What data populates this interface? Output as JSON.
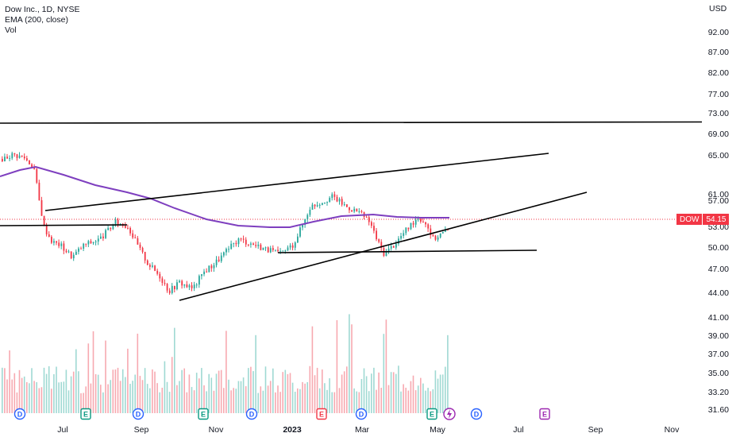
{
  "legend": {
    "symbol_line": "Dow Inc., 1D, NYSE",
    "ema_line": "EMA (200, close)",
    "vol_line": "Vol"
  },
  "currency": "USD",
  "price_axis": [
    "92.00",
    "87.00",
    "82.00",
    "77.00",
    "73.00",
    "69.00",
    "65.00",
    "61.00",
    "57.00",
    "53.00",
    "50.00",
    "47.00",
    "44.00",
    "41.00",
    "39.00",
    "37.00",
    "35.00",
    "33.20",
    "31.60"
  ],
  "time_axis": [
    "Jul",
    "Sep",
    "Nov",
    "2023",
    "Mar",
    "May",
    "Jul",
    "Sep",
    "Nov"
  ],
  "last_price": {
    "symbol": "DOW",
    "value": "54.15"
  },
  "event_markers": [
    "D",
    "E",
    "D",
    "E",
    "D",
    "E",
    "D",
    "E",
    "D",
    "E"
  ],
  "colors": {
    "up": "#26a69a",
    "down": "#f23645",
    "ema": "#7e3fbf",
    "vol_up": "#9fd9d3",
    "vol_down": "#f7a9b0",
    "trendline": "#000000",
    "dividend": "#2962ff",
    "earnings_past": "#089981",
    "earnings_down": "#f23645",
    "earnings_future": "#9c27b0"
  },
  "chart_data": {
    "type": "candlestick",
    "symbol": "Dow Inc.",
    "interval": "1D",
    "exchange": "NYSE",
    "indicators": [
      "EMA (200, close)",
      "Vol"
    ],
    "last_price": 54.15,
    "close_series_approx": [
      {
        "x": "2022-06",
        "y": 69.0
      },
      {
        "x": "2022-06",
        "y": 68.0
      },
      {
        "x": "2022-06",
        "y": 65.5
      },
      {
        "x": "2022-07",
        "y": 53.0
      },
      {
        "x": "2022-07",
        "y": 51.0
      },
      {
        "x": "2022-07",
        "y": 52.5
      },
      {
        "x": "2022-08",
        "y": 53.5
      },
      {
        "x": "2022-08",
        "y": 55.0
      },
      {
        "x": "2022-09",
        "y": 52.0
      },
      {
        "x": "2022-09",
        "y": 48.0
      },
      {
        "x": "2022-10",
        "y": 44.5
      },
      {
        "x": "2022-10",
        "y": 46.0
      },
      {
        "x": "2022-11",
        "y": 49.0
      },
      {
        "x": "2022-11",
        "y": 51.5
      },
      {
        "x": "2022-12",
        "y": 51.0
      },
      {
        "x": "2022-12",
        "y": 50.0
      },
      {
        "x": "2023-01",
        "y": 57.0
      },
      {
        "x": "2023-01",
        "y": 59.5
      },
      {
        "x": "2023-02",
        "y": 60.5
      },
      {
        "x": "2023-02",
        "y": 58.0
      },
      {
        "x": "2023-03",
        "y": 53.0
      },
      {
        "x": "2023-03",
        "y": 51.5
      },
      {
        "x": "2023-04",
        "y": 55.5
      },
      {
        "x": "2023-04",
        "y": 56.5
      },
      {
        "x": "2023-05",
        "y": 54.15
      }
    ],
    "ema200_approx": [
      {
        "x": "2022-06",
        "y": 61.5
      },
      {
        "x": "2022-07",
        "y": 60.0
      },
      {
        "x": "2022-08",
        "y": 57.8
      },
      {
        "x": "2022-09",
        "y": 56.5
      },
      {
        "x": "2022-10",
        "y": 54.5
      },
      {
        "x": "2022-11",
        "y": 53.6
      },
      {
        "x": "2022-12",
        "y": 53.1
      },
      {
        "x": "2023-01",
        "y": 53.6
      },
      {
        "x": "2023-02",
        "y": 54.5
      },
      {
        "x": "2023-03",
        "y": 54.8
      },
      {
        "x": "2023-04",
        "y": 54.3
      },
      {
        "x": "2023-05",
        "y": 54.2
      }
    ],
    "trendlines_price_levels": [
      {
        "name": "horizontal-resistance",
        "y": [
          71.0,
          71.0
        ]
      },
      {
        "name": "upper-wedge",
        "y": [
          54.8,
          64.8
        ]
      },
      {
        "name": "lower-wedge",
        "y": [
          44.0,
          58.5
        ]
      },
      {
        "name": "horizontal-support",
        "y": [
          49.6,
          49.8
        ]
      },
      {
        "name": "left-support",
        "y": [
          53.8,
          53.8
        ]
      }
    ],
    "y_axis_ticks": [
      92.0,
      87.0,
      82.0,
      77.0,
      73.0,
      69.0,
      65.0,
      61.0,
      57.0,
      53.0,
      50.0,
      47.0,
      44.0,
      41.0,
      39.0,
      37.0,
      35.0,
      33.2,
      31.6
    ],
    "x_axis_ticks": [
      "Jul",
      "Sep",
      "Nov",
      "2023",
      "Mar",
      "May",
      "Jul",
      "Sep",
      "Nov"
    ],
    "y_scale": "log",
    "grid": false,
    "legend": "top-left"
  }
}
